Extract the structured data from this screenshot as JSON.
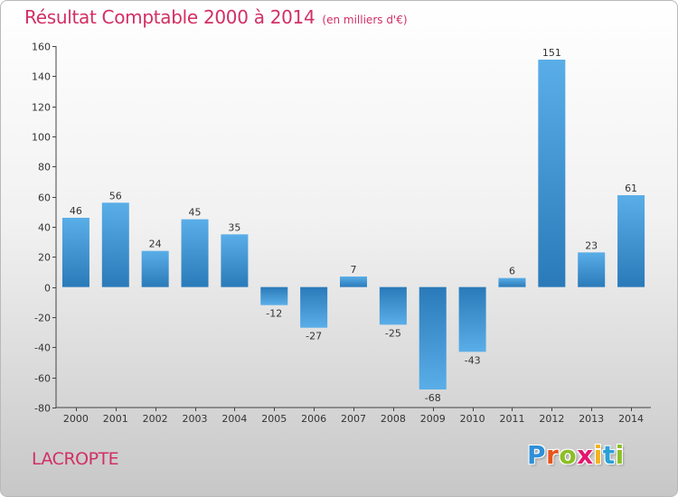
{
  "header": {
    "title": "Résultat Comptable 2000 à 2014",
    "subtitle": "(en milliers d'€)"
  },
  "footer": {
    "commune": "LACROPTE",
    "logo_letters": [
      "P",
      "r",
      "o",
      "x",
      "i",
      "t",
      "i"
    ],
    "logo_colors": [
      "#2f8fd8",
      "#e8541c",
      "#8cbf26",
      "#e3186e",
      "#f3b21b",
      "#2aa1d6",
      "#8cbf26"
    ]
  },
  "colors": {
    "bar_light": "#5aaee8",
    "bar_dark": "#2a7ab9",
    "title": "#d22f64"
  },
  "chart_data": {
    "type": "bar",
    "categories": [
      "2000",
      "2001",
      "2002",
      "2003",
      "2004",
      "2005",
      "2006",
      "2007",
      "2008",
      "2009",
      "2010",
      "2011",
      "2012",
      "2013",
      "2014"
    ],
    "values": [
      46,
      56,
      24,
      45,
      35,
      -12,
      -27,
      7,
      -25,
      -68,
      -43,
      6,
      151,
      23,
      61
    ],
    "ylim": [
      -80,
      160
    ],
    "yticks": [
      160,
      140,
      120,
      100,
      80,
      60,
      40,
      20,
      0,
      -20,
      -40,
      -60,
      -80
    ],
    "grid": false,
    "legend": "none"
  }
}
